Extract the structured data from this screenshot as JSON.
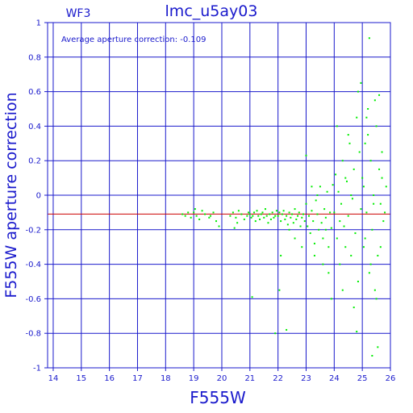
{
  "chart_data": {
    "type": "scatter",
    "title": "lmc_u5ay03",
    "chip_label": "WF3",
    "annotation": "Average aperture correction:  -0.109",
    "xlabel": "F555W",
    "ylabel": "F555W aperture correction",
    "xlim": [
      13.8,
      26
    ],
    "ylim": [
      -1,
      1
    ],
    "xticks": [
      "14",
      "15",
      "16",
      "17",
      "18",
      "19",
      "20",
      "21",
      "22",
      "23",
      "24",
      "25",
      "26"
    ],
    "yticks": [
      "1",
      "0.8",
      "0.6",
      "0.4",
      "0.2",
      "0",
      "-0.2",
      "-0.4",
      "-0.6",
      "-0.8",
      "-1"
    ],
    "grid": true,
    "reference_line": {
      "y": -0.109,
      "color": "#cc0000"
    },
    "colors": {
      "axis": "#1a1acc",
      "points": "#00ee00",
      "reference": "#cc0000"
    },
    "points": [
      [
        18.6,
        -0.11
      ],
      [
        18.7,
        -0.12
      ],
      [
        18.8,
        -0.1
      ],
      [
        18.9,
        -0.13
      ],
      [
        19.0,
        -0.1
      ],
      [
        19.1,
        -0.12
      ],
      [
        19.2,
        -0.14
      ],
      [
        19.3,
        -0.09
      ],
      [
        19.4,
        -0.11
      ],
      [
        19.6,
        -0.12
      ],
      [
        19.7,
        -0.1
      ],
      [
        19.8,
        -0.15
      ],
      [
        19.9,
        -0.18
      ],
      [
        19.05,
        -0.08
      ],
      [
        19.55,
        -0.13
      ],
      [
        20.3,
        -0.12
      ],
      [
        20.4,
        -0.1
      ],
      [
        20.5,
        -0.13
      ],
      [
        20.55,
        -0.16
      ],
      [
        20.6,
        -0.09
      ],
      [
        20.7,
        -0.11
      ],
      [
        20.8,
        -0.14
      ],
      [
        20.9,
        -0.12
      ],
      [
        20.95,
        -0.1
      ],
      [
        20.45,
        -0.19
      ],
      [
        21.0,
        -0.11
      ],
      [
        21.05,
        -0.13
      ],
      [
        21.1,
        -0.12
      ],
      [
        21.15,
        -0.1
      ],
      [
        21.2,
        -0.15
      ],
      [
        21.25,
        -0.09
      ],
      [
        21.3,
        -0.12
      ],
      [
        21.35,
        -0.14
      ],
      [
        21.4,
        -0.11
      ],
      [
        21.45,
        -0.1
      ],
      [
        21.5,
        -0.13
      ],
      [
        21.55,
        -0.08
      ],
      [
        21.6,
        -0.12
      ],
      [
        21.65,
        -0.16
      ],
      [
        21.7,
        -0.11
      ],
      [
        21.75,
        -0.14
      ],
      [
        21.8,
        -0.1
      ],
      [
        21.85,
        -0.13
      ],
      [
        21.9,
        -0.12
      ],
      [
        21.95,
        -0.09
      ],
      [
        21.08,
        -0.59
      ],
      [
        22.0,
        -0.12
      ],
      [
        22.05,
        -0.1
      ],
      [
        22.1,
        -0.15
      ],
      [
        22.15,
        -0.11
      ],
      [
        22.2,
        -0.09
      ],
      [
        22.25,
        -0.14
      ],
      [
        22.3,
        -0.12
      ],
      [
        22.35,
        -0.17
      ],
      [
        22.4,
        -0.1
      ],
      [
        22.45,
        -0.13
      ],
      [
        22.5,
        -0.11
      ],
      [
        22.55,
        -0.16
      ],
      [
        22.6,
        -0.08
      ],
      [
        22.65,
        -0.14
      ],
      [
        22.7,
        -0.12
      ],
      [
        22.75,
        -0.1
      ],
      [
        22.8,
        -0.18
      ],
      [
        22.85,
        -0.13
      ],
      [
        22.9,
        -0.11
      ],
      [
        22.95,
        -0.15
      ],
      [
        22.1,
        -0.35
      ],
      [
        21.9,
        -0.8
      ],
      [
        22.3,
        -0.78
      ],
      [
        22.05,
        -0.55
      ],
      [
        22.6,
        -0.25
      ],
      [
        22.85,
        -0.3
      ],
      [
        22.4,
        -0.2
      ],
      [
        23.0,
        -0.05
      ],
      [
        23.05,
        -0.18
      ],
      [
        23.1,
        -0.12
      ],
      [
        23.15,
        -0.22
      ],
      [
        23.2,
        -0.09
      ],
      [
        23.25,
        -0.15
      ],
      [
        23.3,
        -0.28
      ],
      [
        23.35,
        -0.03
      ],
      [
        23.4,
        -0.11
      ],
      [
        23.45,
        -0.2
      ],
      [
        23.5,
        0.05
      ],
      [
        23.55,
        -0.16
      ],
      [
        23.6,
        -0.25
      ],
      [
        23.65,
        -0.08
      ],
      [
        23.7,
        -0.13
      ],
      [
        23.75,
        0.02
      ],
      [
        23.8,
        -0.3
      ],
      [
        23.85,
        -0.1
      ],
      [
        23.9,
        -0.19
      ],
      [
        23.95,
        0.06
      ],
      [
        23.2,
        0.05
      ],
      [
        23.4,
        0.0
      ],
      [
        23.6,
        -0.4
      ],
      [
        23.8,
        -0.45
      ],
      [
        23.9,
        -0.6
      ],
      [
        23.0,
        0.23
      ],
      [
        23.3,
        -0.35
      ],
      [
        23.7,
        -0.2
      ],
      [
        24.0,
        -0.1
      ],
      [
        24.05,
        0.12
      ],
      [
        24.1,
        -0.25
      ],
      [
        24.15,
        0.02
      ],
      [
        24.2,
        -0.4
      ],
      [
        24.25,
        -0.05
      ],
      [
        24.3,
        0.2
      ],
      [
        24.35,
        -0.18
      ],
      [
        24.4,
        -0.3
      ],
      [
        24.45,
        0.08
      ],
      [
        24.5,
        -0.12
      ],
      [
        24.55,
        0.3
      ],
      [
        24.6,
        -0.35
      ],
      [
        24.65,
        -0.02
      ],
      [
        24.7,
        0.15
      ],
      [
        24.75,
        -0.22
      ],
      [
        24.8,
        0.45
      ],
      [
        24.85,
        -0.5
      ],
      [
        24.9,
        0.25
      ],
      [
        24.95,
        -0.08
      ],
      [
        24.1,
        0.4
      ],
      [
        24.3,
        -0.55
      ],
      [
        24.5,
        0.35
      ],
      [
        24.7,
        -0.65
      ],
      [
        24.85,
        0.6
      ],
      [
        24.95,
        0.65
      ],
      [
        24.8,
        -0.79
      ],
      [
        24.4,
        0.1
      ],
      [
        24.6,
        0.0
      ],
      [
        24.2,
        -0.15
      ],
      [
        25.0,
        0.1
      ],
      [
        25.05,
        -0.3
      ],
      [
        25.1,
        0.3
      ],
      [
        25.15,
        -0.1
      ],
      [
        25.2,
        0.5
      ],
      [
        25.25,
        -0.45
      ],
      [
        25.3,
        0.2
      ],
      [
        25.35,
        -0.2
      ],
      [
        25.4,
        0.0
      ],
      [
        25.45,
        -0.55
      ],
      [
        25.5,
        0.4
      ],
      [
        25.55,
        -0.35
      ],
      [
        25.6,
        0.15
      ],
      [
        25.65,
        -0.05
      ],
      [
        25.7,
        0.25
      ],
      [
        25.75,
        -0.15
      ],
      [
        25.8,
        -0.1
      ],
      [
        25.85,
        0.05
      ],
      [
        25.25,
        0.91
      ],
      [
        25.35,
        -0.93
      ],
      [
        25.45,
        0.55
      ],
      [
        25.5,
        -0.6
      ],
      [
        25.6,
        0.58
      ],
      [
        25.55,
        -0.88
      ],
      [
        25.4,
        -0.05
      ],
      [
        25.2,
        0.35
      ],
      [
        25.1,
        -0.25
      ],
      [
        25.05,
        0.05
      ],
      [
        25.65,
        -0.3
      ],
      [
        25.7,
        0.1
      ],
      [
        25.3,
        -0.4
      ],
      [
        25.15,
        0.45
      ]
    ]
  }
}
